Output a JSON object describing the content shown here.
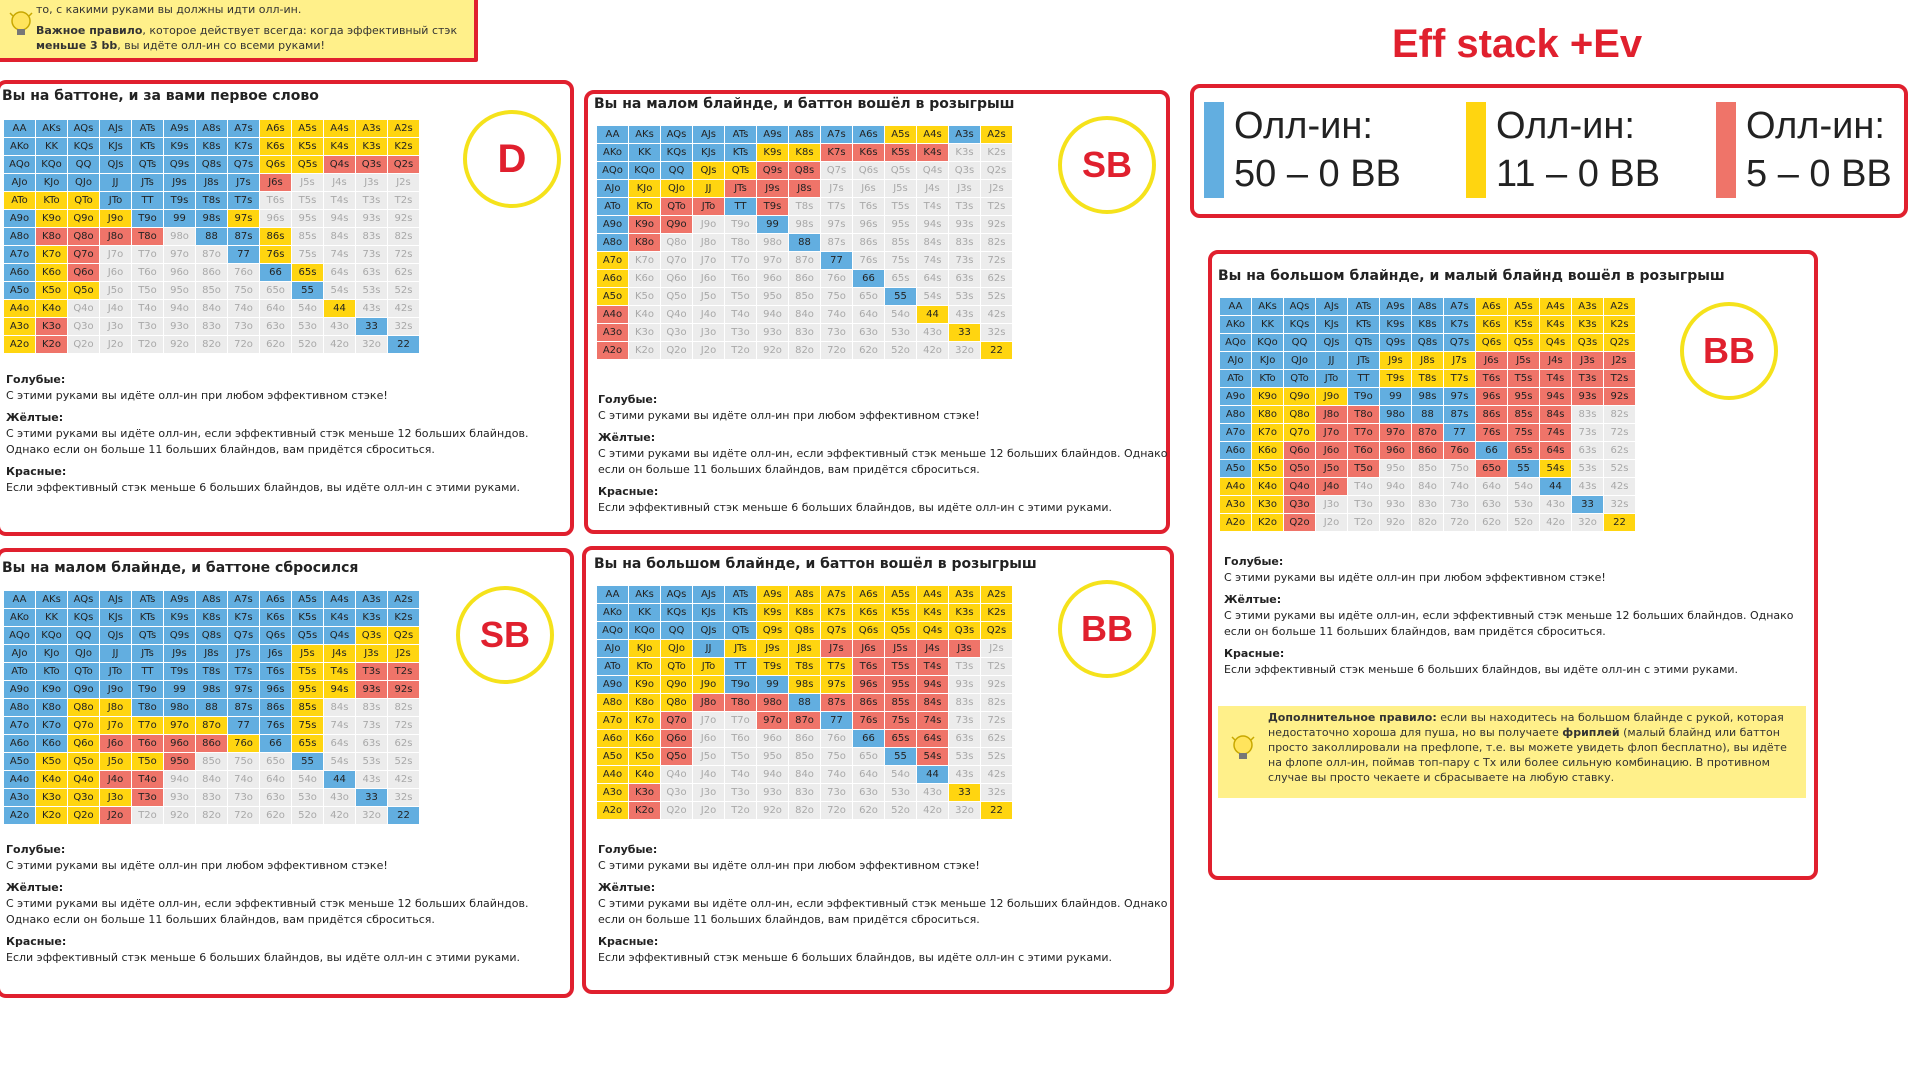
{
  "tip_top": {
    "line1": "то, с какими руками вы должны идти олл-ин.",
    "rule_prefix": "Важное правило",
    "rule_mid": ", которое действует всегда: когда эффективный стэк ",
    "rule_bold": "меньше 3 bb",
    "rule_suffix": ", вы идёте олл-ин со всеми руками!",
    "icon": "lightbulb-icon"
  },
  "legend": {
    "title": "Eff stack +Ev",
    "items": [
      {
        "color": "#62aee0",
        "label": "Олл-ин:",
        "range": "50 – 0 BB"
      },
      {
        "color": "#ffd510",
        "label": "Олл-ин:",
        "range": "11 – 0 BB"
      },
      {
        "color": "#ef7469",
        "label": "Олл-ин:",
        "range": "5 – 0 BB"
      }
    ]
  },
  "description": {
    "blue_h": "Голубые:",
    "blue_t": "С этими руками вы идёте олл-ин при любом эффективном стэке!",
    "yellow_h": "Жёлтые:",
    "yellow_t": "С этими руками вы идёте олл-ин, если эффективный стэк меньше 12 больших блайндов. Однако если он больше 11 больших блайндов, вам придётся сброситься.",
    "red_h": "Красные:",
    "red_t": "Если эффективный стэк меньше 6 больших блайндов, вы идёте олл-ин с этими руками."
  },
  "bb_tip": {
    "bold1": "Дополнительное правило:",
    "text1": " если вы находитесь на большом блайнде с рукой, которая недостаточно хороша для пуша, но вы получаете ",
    "bold2": "фриплей",
    "text2": " (малый блайнд или баттон просто заколлировали на префлопе, т.е. вы можете увидеть флоп бесплатно), вы идёте на флопе олл-ин, поймав топ-пару с Tx или более сильную комбинацию. В противном случае вы просто чекаете и сбрасываете на любую ставку.",
    "icon": "lightbulb-icon"
  },
  "ranks": [
    "A",
    "K",
    "Q",
    "J",
    "T",
    "9",
    "8",
    "7",
    "6",
    "5",
    "4",
    "3",
    "2"
  ],
  "panels": [
    {
      "id": "btn",
      "title": "Вы на баттоне, и за вами первое слово",
      "badge": "D",
      "grid": [
        "BBBBBBBBYYYYY",
        "BBBBBBBBYYYYY",
        "BBBBBBBBYYRRR",
        "BBBBBBBBRNNNN",
        "YYYBBBBBNNNNN",
        "BYYYBBBYNNNNN",
        "BRRRRNBBYNNNN",
        "BYRNNNNBYNNNN",
        "BYRNNNNNBYNNN",
        "BYYNNNNNNBNNN",
        "YYNNNNNNNNYNN",
        "YRNNNNNNNNNBN",
        "YRNNNNNNNNNNB"
      ]
    },
    {
      "id": "sb1",
      "title": "Вы на малом блайнде, и баттон вошёл в розыгрыш",
      "badge": "SB",
      "grid": [
        "BBBBBBBBBYYBY",
        "BBBBBYYRRRRNN",
        "BBBYYRRNNNNNN",
        "BYYYRRRNNNNNN",
        "BYRRBRNNNNNNN",
        "BRRNNBNNNNNNN",
        "BRNNNNBNNNNNN",
        "YNNNNNNBNNNNN",
        "YNNNNNNNBNNNN",
        "YNNNNNNNNBNNN",
        "RNNNNNNNNNYNN",
        "RNNNNNNNNNNYN",
        "RNNNNNNNNNNNY"
      ]
    },
    {
      "id": "bb1",
      "title": "Вы на большом блайнде, и малый блайнд вошёл в розыгрыш",
      "badge": "BB",
      "grid": [
        "BBBBBBBBYYYYY",
        "BBBBBBBBYYYYY",
        "BBBBBBBBYYYYY",
        "BBBBBYYYRRRRR",
        "BBBBBYYYRRRRR",
        "BYYYBBBBRRRRR",
        "BYYRRBBBRRRNN",
        "BYYRRRRBRRRNN",
        "BYRRRRRRBRRNN",
        "BYRRRNNNRBYNN",
        "YYRRNNNNNNBNN",
        "YYRNNNNNNNNBN",
        "YYRNNNNNNNNNY"
      ]
    },
    {
      "id": "sb2",
      "title": "Вы на малом блайнде, и баттоне сбросился",
      "badge": "SB",
      "grid": [
        "BBBBBBBBBBBBB",
        "BBBBBBBBBBBBB",
        "BBBBBBBBBBBYY",
        "BBBBBBBBBYYYY",
        "BBBBBBBBBYYRR",
        "BBBBBBBBBYYRR",
        "BBYYBBBBBYNNN",
        "BBYYYYYBBYNNN",
        "BBYRRRRYBYNNN",
        "BYYYYRNNNBNNN",
        "BYYRRNNNNNBNN",
        "BYYYRNNNNNNBN",
        "BYYRNNNNNNNNB"
      ]
    },
    {
      "id": "bb2",
      "title": "Вы на большом блайнде, и баттон вошёл в розыгрыш",
      "badge": "BB",
      "grid": [
        "BBBBBYYYYYYYY",
        "BBBBBYYYYYYYY",
        "BBBBBYYYYYYYY",
        "BYYBYYYRRRRRN",
        "BYYYBYYYRRRNN",
        "BYYYBBYYRRRNN",
        "YYYRRRBRRRRNN",
        "YYRNNRRBRRRNN",
        "YYRNNNNNBRRNN",
        "YYRNNNNNNBRNN",
        "YYNNNNNNNNBNN",
        "YRNNNNNNNNNYN",
        "YRNNNNNNNNNNY"
      ]
    }
  ]
}
